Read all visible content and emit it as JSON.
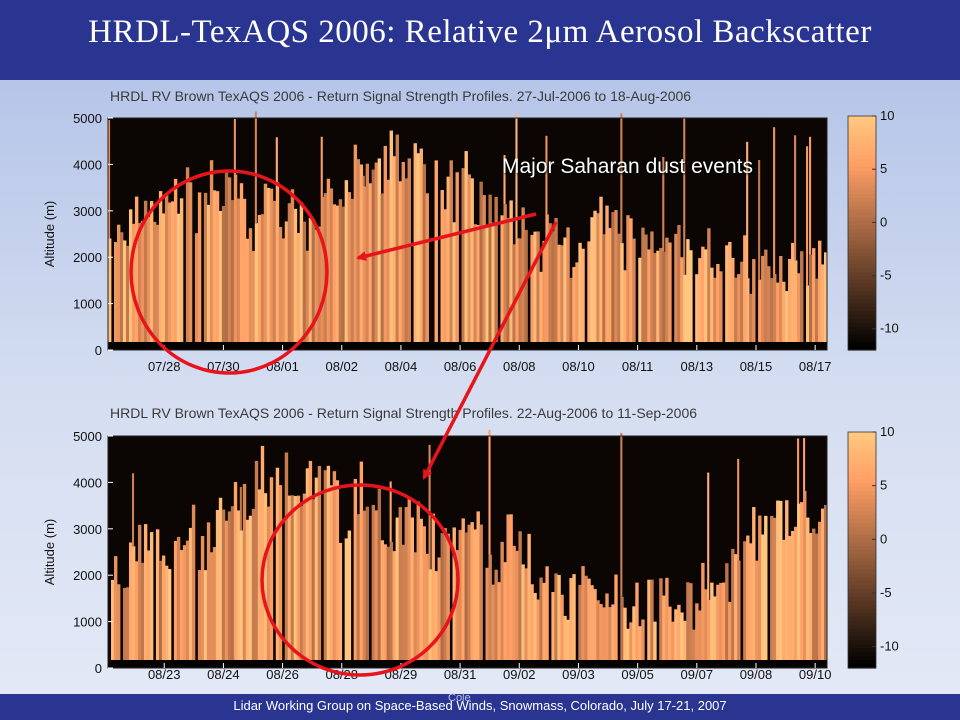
{
  "slide": {
    "title": "HRDL-TexAQS 2006: Relative 2μm Aerosol Backscatter",
    "footer": "Lidar Working Group on Space-Based Winds, Snowmass, Colorado, July 17-21, 2007",
    "footer_caption": "Cole",
    "annotation": "Major Saharan dust events",
    "colors": {
      "title_bar": "#2a3591",
      "annotation": "#e8141b"
    }
  },
  "chart_data": [
    {
      "type": "heatmap",
      "title": "HRDL RV Brown TexAQS 2006 - Return Signal Strength Profiles. 27-Jul-2006 to 18-Aug-2006",
      "ylabel": "Altitude (m)",
      "xlabel": "",
      "ylim": [
        0,
        5000
      ],
      "yticks": [
        0,
        1000,
        2000,
        3000,
        4000,
        5000
      ],
      "xticks": [
        "07/28",
        "07/30",
        "08/01",
        "08/02",
        "08/04",
        "08/06",
        "08/08",
        "08/10",
        "08/11",
        "08/13",
        "08/15",
        "08/17"
      ],
      "colorbar": {
        "range": [
          -12,
          10
        ],
        "ticks": [
          10,
          5,
          0,
          -5,
          -10
        ]
      },
      "colorscale": "copper",
      "grid": false
    },
    {
      "type": "heatmap",
      "title": "HRDL RV Brown TexAQS 2006 - Return Signal Strength Profiles. 22-Aug-2006 to 11-Sep-2006",
      "ylabel": "Altitude (m)",
      "xlabel": "",
      "ylim": [
        0,
        5000
      ],
      "yticks": [
        0,
        1000,
        2000,
        3000,
        4000,
        5000
      ],
      "xticks": [
        "08/23",
        "08/24",
        "08/26",
        "08/28",
        "08/29",
        "08/31",
        "09/02",
        "09/03",
        "09/05",
        "09/07",
        "09/08",
        "09/10"
      ],
      "colorbar": {
        "range": [
          -12,
          10
        ],
        "ticks": [
          10,
          5,
          0,
          -5,
          -10
        ]
      },
      "colorscale": "copper",
      "grid": false
    }
  ]
}
